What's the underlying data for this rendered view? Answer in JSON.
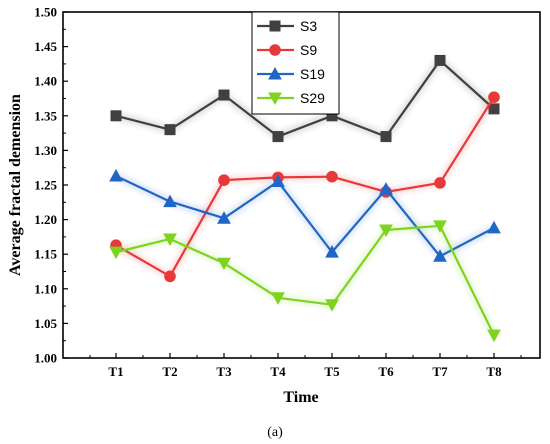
{
  "chart_data": {
    "type": "line",
    "title": "",
    "xlabel": "Time",
    "ylabel": "Average fractal demension",
    "categories": [
      "T1",
      "T2",
      "T3",
      "T4",
      "T5",
      "T6",
      "T7",
      "T8"
    ],
    "ylim": [
      1.0,
      1.5
    ],
    "yticks": [
      "1.00",
      "1.05",
      "1.10",
      "1.15",
      "1.20",
      "1.25",
      "1.30",
      "1.35",
      "1.40",
      "1.45",
      "1.50"
    ],
    "grid": false,
    "legend_position": "top-center",
    "series": [
      {
        "name": "S3",
        "color": "#404040",
        "marker": "square",
        "values": [
          1.35,
          1.33,
          1.38,
          1.32,
          1.35,
          1.32,
          1.43,
          1.36
        ]
      },
      {
        "name": "S9",
        "color": "#e8393a",
        "marker": "circle",
        "values": [
          1.163,
          1.118,
          1.257,
          1.261,
          1.262,
          1.24,
          1.253,
          1.377
        ]
      },
      {
        "name": "S19",
        "color": "#2166c4",
        "marker": "triangle-up",
        "values": [
          1.263,
          1.226,
          1.202,
          1.255,
          1.153,
          1.244,
          1.147,
          1.188
        ]
      },
      {
        "name": "S29",
        "color": "#7ed321",
        "marker": "triangle-down",
        "values": [
          1.153,
          1.172,
          1.137,
          1.087,
          1.077,
          1.185,
          1.191,
          1.033
        ]
      }
    ]
  },
  "caption": "(a)"
}
